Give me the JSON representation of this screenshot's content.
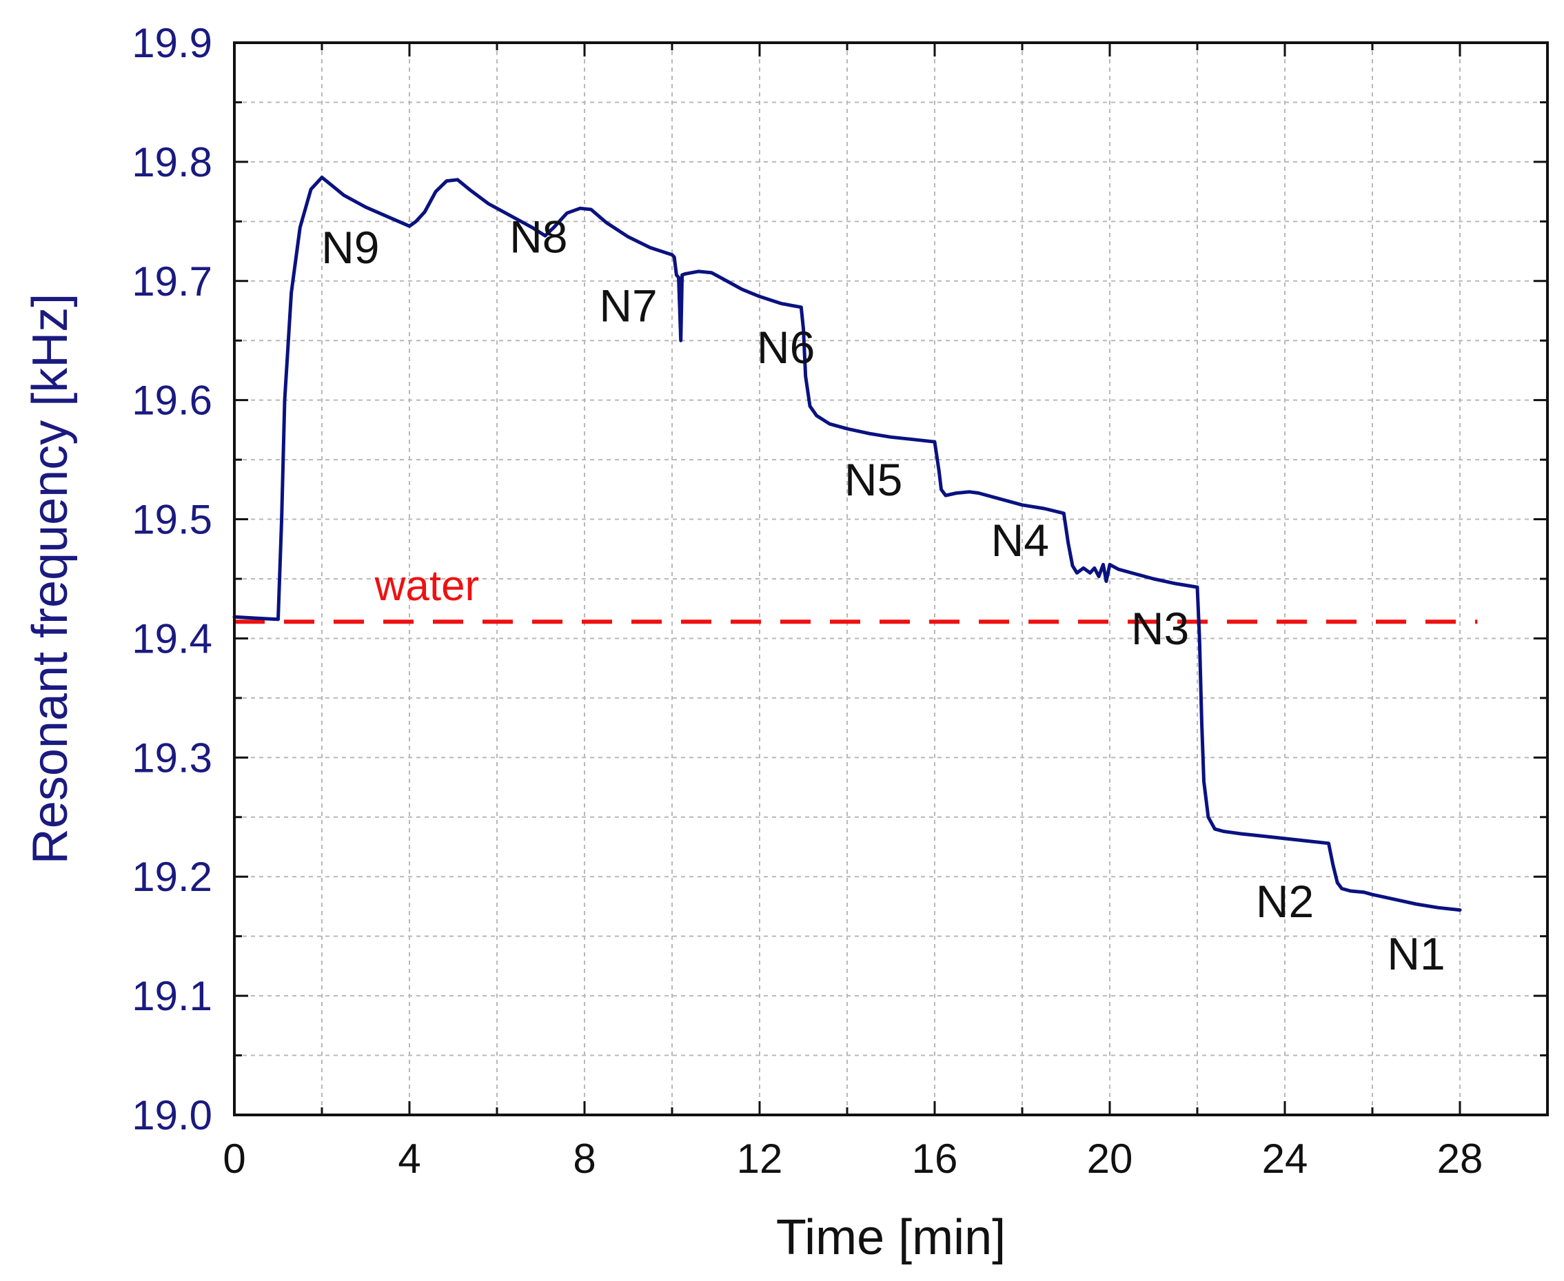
{
  "chart_data": {
    "type": "line",
    "title": "",
    "xlabel": "Time [min]",
    "ylabel": "Resonant frequency [kHz]",
    "xlim": [
      0,
      30
    ],
    "ylim": [
      19.0,
      19.9
    ],
    "xticks": [
      0,
      4,
      8,
      12,
      16,
      20,
      24,
      28
    ],
    "xtick_labels": [
      "0",
      "4",
      "8",
      "12",
      "16",
      "20",
      "24",
      "28"
    ],
    "yticks": [
      19.0,
      19.1,
      19.2,
      19.3,
      19.4,
      19.5,
      19.6,
      19.7,
      19.8,
      19.9
    ],
    "ytick_labels": [
      "19.0",
      "19.1",
      "19.2",
      "19.3",
      "19.4",
      "19.5",
      "19.6",
      "19.7",
      "19.8",
      "19.9"
    ],
    "grid": true,
    "colors": {
      "series": "#0a1280",
      "reference": "#ee1111",
      "axis_label": "#1a1a80"
    },
    "series": [
      {
        "name": "Resonant frequency",
        "x": [
          0,
          0.5,
          1.0,
          1.08,
          1.15,
          1.3,
          1.5,
          1.75,
          2.0,
          2.2,
          2.5,
          3.0,
          3.5,
          4.0,
          4.15,
          4.35,
          4.6,
          4.85,
          5.1,
          5.4,
          5.8,
          6.3,
          6.8,
          7.1,
          7.3,
          7.6,
          7.9,
          8.15,
          8.5,
          9.0,
          9.5,
          10.0,
          10.05,
          10.1,
          10.15,
          10.2,
          10.23,
          10.3,
          10.6,
          10.9,
          11.2,
          11.6,
          12.0,
          12.5,
          12.95,
          13.0,
          13.05,
          13.15,
          13.3,
          13.6,
          14.0,
          14.5,
          15.0,
          15.5,
          16.0,
          16.1,
          16.15,
          16.25,
          16.5,
          16.8,
          17.0,
          17.5,
          18.0,
          18.5,
          18.95,
          19.05,
          19.15,
          19.25,
          19.4,
          19.55,
          19.65,
          19.75,
          19.85,
          19.92,
          20.0,
          20.2,
          20.5,
          21.0,
          21.5,
          22.0,
          22.05,
          22.1,
          22.15,
          22.25,
          22.4,
          22.6,
          23.0,
          23.5,
          24.0,
          24.5,
          25.0,
          25.1,
          25.2,
          25.3,
          25.5,
          25.8,
          26.0,
          26.5,
          27.0,
          27.5,
          28.0
        ],
        "values": [
          19.418,
          19.417,
          19.416,
          19.5,
          19.6,
          19.69,
          19.745,
          19.777,
          19.787,
          19.781,
          19.772,
          19.762,
          19.754,
          19.746,
          19.75,
          19.758,
          19.775,
          19.784,
          19.785,
          19.776,
          19.765,
          19.755,
          19.745,
          19.738,
          19.745,
          19.757,
          19.761,
          19.76,
          19.749,
          19.737,
          19.728,
          19.722,
          19.72,
          19.705,
          19.703,
          19.65,
          19.705,
          19.706,
          19.708,
          19.707,
          19.701,
          19.693,
          19.687,
          19.681,
          19.678,
          19.66,
          19.62,
          19.595,
          19.587,
          19.58,
          19.576,
          19.572,
          19.569,
          19.567,
          19.565,
          19.54,
          19.525,
          19.52,
          19.522,
          19.523,
          19.522,
          19.517,
          19.512,
          19.509,
          19.505,
          19.48,
          19.461,
          19.455,
          19.459,
          19.455,
          19.459,
          19.452,
          19.462,
          19.448,
          19.462,
          19.458,
          19.455,
          19.45,
          19.446,
          19.443,
          19.4,
          19.33,
          19.28,
          19.25,
          19.24,
          19.238,
          19.236,
          19.234,
          19.232,
          19.23,
          19.228,
          19.21,
          19.195,
          19.19,
          19.188,
          19.187,
          19.185,
          19.181,
          19.177,
          19.174,
          19.172
        ]
      }
    ],
    "reference_lines": [
      {
        "name": "water",
        "y": 19.414,
        "x_range": [
          0,
          28.4
        ],
        "style": "dashed"
      }
    ],
    "annotations": [
      {
        "text": "N9",
        "x": 2.65,
        "y": 19.715
      },
      {
        "text": "N8",
        "x": 6.95,
        "y": 19.724
      },
      {
        "text": "N7",
        "x": 9.0,
        "y": 19.666
      },
      {
        "text": "N6",
        "x": 12.6,
        "y": 19.631
      },
      {
        "text": "N5",
        "x": 14.6,
        "y": 19.52
      },
      {
        "text": "N4",
        "x": 17.95,
        "y": 19.469
      },
      {
        "text": "N3",
        "x": 21.15,
        "y": 19.395
      },
      {
        "text": "N2",
        "x": 24.0,
        "y": 19.166
      },
      {
        "text": "N1",
        "x": 27.0,
        "y": 19.122
      },
      {
        "text": "water",
        "x": 4.4,
        "y": 19.432,
        "color": "#ee1111"
      }
    ]
  }
}
